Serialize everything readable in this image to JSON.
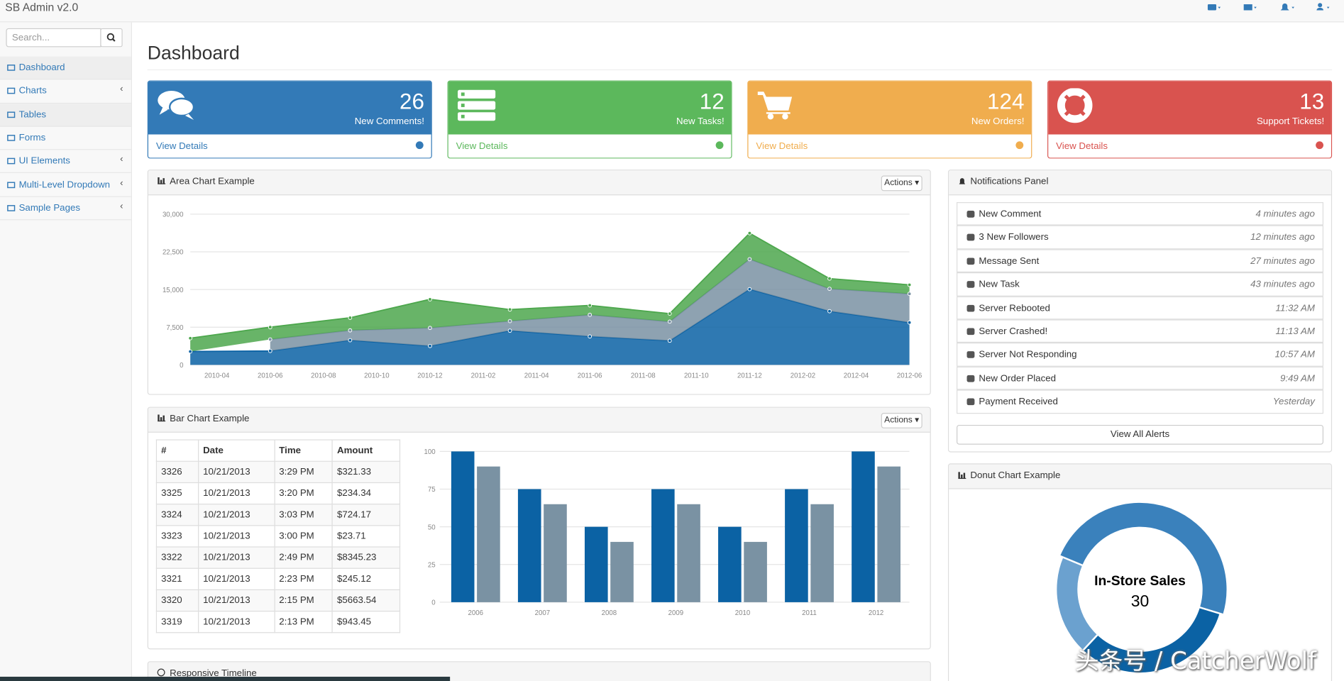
{
  "navbar": {
    "brand": "SB Admin v2.0"
  },
  "sidebar": {
    "search_placeholder": "Search...",
    "items": [
      "Dashboard",
      "Charts",
      "Tables",
      "Forms",
      "UI Elements",
      "Multi-Level Dropdown",
      "Sample Pages"
    ]
  },
  "page_title": "Dashboard",
  "stat_cards": [
    {
      "value": 26,
      "label": "New Comments!",
      "link": "View Details",
      "color": "#337ab7"
    },
    {
      "value": 12,
      "label": "New Tasks!",
      "link": "View Details",
      "color": "#5cb85c"
    },
    {
      "value": 124,
      "label": "New Orders!",
      "link": "View Details",
      "color": "#f0ad4e"
    },
    {
      "value": 13,
      "label": "Support Tickets!",
      "link": "View Details",
      "color": "#d9534f"
    }
  ],
  "area_panel": {
    "heading": "Area Chart Example",
    "actions": "Actions",
    "chart_data": {
      "type": "area",
      "stacked": true,
      "x": [
        "2010-03",
        "2010-06",
        "2010-09",
        "2010-12",
        "2011-03",
        "2011-06",
        "2011-09",
        "2011-12",
        "2012-03",
        "2012-06"
      ],
      "series": [
        {
          "color": "#0b62a4",
          "values": [
            2666,
            2778,
            4912,
            3767,
            6810,
            5670,
            4820,
            15073,
            10687,
            8432
          ]
        },
        {
          "color": "#7a92a3",
          "values": [
            null,
            2294,
            1969,
            3597,
            1914,
            4293,
            3795,
            5967,
            4460,
            5713
          ]
        },
        {
          "color": "#4da74d",
          "values": [
            2647,
            2441,
            2501,
            5689,
            2293,
            1881,
            1588,
            5175,
            2028,
            1791
          ]
        }
      ],
      "xlim": [
        "2010-03",
        "2012-06"
      ],
      "xticks": [
        "2010-04",
        "2010-06",
        "2010-08",
        "2010-10",
        "2010-12",
        "2011-02",
        "2011-04",
        "2011-06",
        "2011-08",
        "2011-10",
        "2011-12",
        "2012-02",
        "2012-04",
        "2012-06"
      ],
      "ylim": [
        0,
        30000
      ],
      "yticks": [
        0,
        {
          "value": 7500,
          "label": "7,500"
        },
        {
          "value": 15000,
          "label": "15,000"
        },
        {
          "value": 22500,
          "label": "22,500"
        },
        {
          "value": 30000,
          "label": "30,000"
        }
      ],
      "grid": true
    }
  },
  "bar_panel": {
    "heading": "Bar Chart Example",
    "actions": "Actions",
    "table": {
      "columns": [
        "#",
        "Date",
        "Time",
        "Amount"
      ],
      "rows": [
        [
          "3326",
          "10/21/2013",
          "3:29 PM",
          "$321.33"
        ],
        [
          "3325",
          "10/21/2013",
          "3:20 PM",
          "$234.34"
        ],
        [
          "3324",
          "10/21/2013",
          "3:03 PM",
          "$724.17"
        ],
        [
          "3323",
          "10/21/2013",
          "3:00 PM",
          "$23.71"
        ],
        [
          "3322",
          "10/21/2013",
          "2:49 PM",
          "$8345.23"
        ],
        [
          "3321",
          "10/21/2013",
          "2:23 PM",
          "$245.12"
        ],
        [
          "3320",
          "10/21/2013",
          "2:15 PM",
          "$5663.54"
        ],
        [
          "3319",
          "10/21/2013",
          "2:13 PM",
          "$943.45"
        ]
      ]
    },
    "chart_data": {
      "type": "bar",
      "categories": [
        "2006",
        "2007",
        "2008",
        "2009",
        "2010",
        "2011",
        "2012"
      ],
      "series": [
        {
          "color": "#0b62a4",
          "values": [
            100,
            75,
            50,
            75,
            50,
            75,
            100
          ]
        },
        {
          "color": "#7a92a3",
          "values": [
            90,
            65,
            40,
            65,
            40,
            65,
            90
          ]
        }
      ],
      "ylim": [
        0,
        100
      ],
      "yticks": [
        0,
        25,
        50,
        75,
        100
      ],
      "grid": true
    }
  },
  "timeline_panel": {
    "heading": "Responsive Timeline"
  },
  "notifications": {
    "heading": "Notifications Panel",
    "items": [
      {
        "text": "New Comment",
        "time": "4 minutes ago"
      },
      {
        "text": "3 New Followers",
        "time": "12 minutes ago"
      },
      {
        "text": "Message Sent",
        "time": "27 minutes ago"
      },
      {
        "text": "New Task",
        "time": "43 minutes ago"
      },
      {
        "text": "Server Rebooted",
        "time": "11:32 AM"
      },
      {
        "text": "Server Crashed!",
        "time": "11:13 AM"
      },
      {
        "text": "Server Not Responding",
        "time": "10:57 AM"
      },
      {
        "text": "New Order Placed",
        "time": "9:49 AM"
      },
      {
        "text": "Payment Received",
        "time": "Yesterday"
      }
    ],
    "button": "View All Alerts"
  },
  "donut_panel": {
    "heading": "Donut Chart Example",
    "chart_data": {
      "type": "donut",
      "categories": [
        null,
        "In-Store Sales",
        null
      ],
      "values": [
        12,
        30,
        20
      ],
      "colors": [
        "#6ba1cf",
        "#3a81bc",
        "#0b62a4"
      ],
      "selected": 1
    }
  },
  "watermark": "头条号 / CatcherWolf"
}
